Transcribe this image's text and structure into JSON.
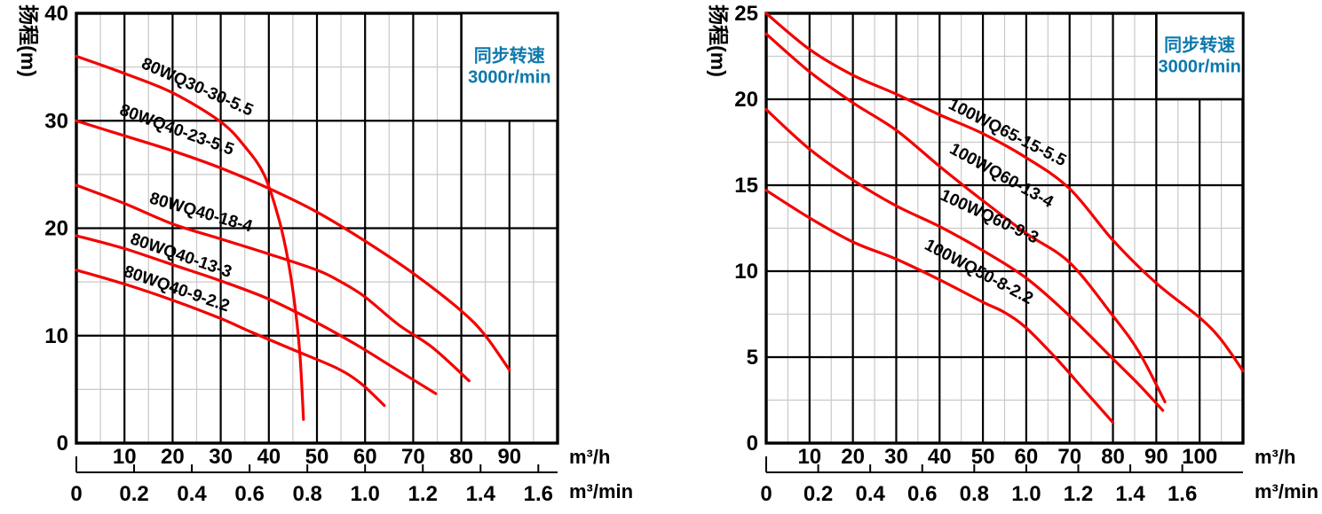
{
  "page": {
    "background": "#ffffff"
  },
  "colors": {
    "curve": "#f40000",
    "grid_major": "#000000",
    "grid_minor": "#c9c9c9",
    "border": "#000000",
    "speed_text": "#0d78ab",
    "text": "#000000"
  },
  "chart_data": [
    {
      "type": "line",
      "name": "80WQ series performance curves",
      "ylabel": "扬程(m)",
      "annotation": {
        "line1": "同步转速",
        "line2": "3000r/min"
      },
      "xlabel_primary": "m³/h",
      "xlabel_secondary": "m³/min",
      "xlim": [
        0,
        100
      ],
      "ylim": [
        0,
        40
      ],
      "x_major": 10,
      "x_minor": 5,
      "y_major": 10,
      "y_minor": 5,
      "x_ticks_primary": [
        10,
        20,
        30,
        40,
        50,
        60,
        70,
        80,
        90
      ],
      "x_ticks_secondary": [
        "0",
        "0.2",
        "0.4",
        "0.6",
        "0.8",
        "1.0",
        "1.2",
        "1.4",
        "1.6"
      ],
      "y_ticks": [
        0,
        10,
        20,
        30,
        40
      ],
      "secondary_to_primary_factor": 60,
      "grid": true,
      "annotation_region": {
        "x0": 80,
        "y0": 30,
        "x1": 100,
        "y1": 40
      },
      "series": [
        {
          "name": "80WQ30-30-5.5",
          "points": [
            [
              0,
              36
            ],
            [
              10,
              34.4
            ],
            [
              20,
              32.6
            ],
            [
              30,
              29.9
            ],
            [
              35,
              27.6
            ],
            [
              39,
              25
            ],
            [
              42,
              21
            ],
            [
              44,
              17
            ],
            [
              45.5,
              12.5
            ],
            [
              46.5,
              8
            ],
            [
              47.2,
              2.2
            ]
          ],
          "label": {
            "x": 24.7,
            "y": 32.7,
            "rot": 24
          }
        },
        {
          "name": "80WQ40-23-5.5",
          "points": [
            [
              0,
              30
            ],
            [
              10,
              28.6
            ],
            [
              20,
              27.2
            ],
            [
              30,
              25.6
            ],
            [
              40,
              23.7
            ],
            [
              50,
              21.5
            ],
            [
              60,
              18.8
            ],
            [
              70,
              15.8
            ],
            [
              80,
              12.3
            ],
            [
              85,
              10
            ],
            [
              90,
              6.8
            ]
          ],
          "label": {
            "x": 20.5,
            "y": 28.7,
            "rot": 20
          }
        },
        {
          "name": "80WQ40-18-4",
          "points": [
            [
              0,
              24
            ],
            [
              10,
              22.3
            ],
            [
              20,
              20.4
            ],
            [
              30,
              19
            ],
            [
              40,
              17.6
            ],
            [
              50,
              16.1
            ],
            [
              55,
              15
            ],
            [
              60,
              13.6
            ],
            [
              67,
              11
            ],
            [
              74,
              8.9
            ],
            [
              81.6,
              5.8
            ]
          ],
          "label": {
            "x": 25.6,
            "y": 21.0,
            "rot": 16
          }
        },
        {
          "name": "80WQ40-13-3",
          "points": [
            [
              0,
              19.3
            ],
            [
              10,
              18.1
            ],
            [
              20,
              16.6
            ],
            [
              30,
              15.1
            ],
            [
              40,
              13.4
            ],
            [
              50,
              11.2
            ],
            [
              58,
              9.2
            ],
            [
              66,
              7
            ],
            [
              74.7,
              4.6
            ]
          ],
          "label": {
            "x": 21.4,
            "y": 17.0,
            "rot": 19
          }
        },
        {
          "name": "80WQ40-9-2.2",
          "points": [
            [
              0,
              16.1
            ],
            [
              10,
              14.8
            ],
            [
              20,
              13.3
            ],
            [
              30,
              11.6
            ],
            [
              36,
              10.4
            ],
            [
              45,
              8.7
            ],
            [
              54,
              7
            ],
            [
              59,
              5.6
            ],
            [
              64,
              3.5
            ]
          ],
          "label": {
            "x": 20.5,
            "y": 13.9,
            "rot": 19
          }
        }
      ]
    },
    {
      "type": "line",
      "name": "100WQ series performance curves",
      "ylabel": "扬程(m)",
      "annotation": {
        "line1": "同步转速",
        "line2": "3000r/min"
      },
      "xlabel_primary": "m³/h",
      "xlabel_secondary": "m³/min",
      "xlim": [
        0,
        110
      ],
      "ylim": [
        0,
        25
      ],
      "x_major": 10,
      "x_minor": 5,
      "y_major": 5,
      "y_minor": 2.5,
      "x_ticks_primary": [
        10,
        20,
        30,
        40,
        50,
        60,
        70,
        80,
        90,
        100
      ],
      "x_ticks_secondary": [
        "0",
        "0.2",
        "0.4",
        "0.6",
        "0.8",
        "1.0",
        "1.2",
        "1.4",
        "1.6"
      ],
      "y_ticks": [
        0,
        5,
        10,
        15,
        20,
        25
      ],
      "secondary_to_primary_factor": 60,
      "grid": true,
      "annotation_region": {
        "x0": 90,
        "y0": 20,
        "x1": 110,
        "y1": 25
      },
      "series": [
        {
          "name": "100WQ65-15-5.5",
          "points": [
            [
              0,
              25
            ],
            [
              10,
              22.9
            ],
            [
              20,
              21.4
            ],
            [
              30,
              20.3
            ],
            [
              40,
              19.1
            ],
            [
              50,
              18
            ],
            [
              60,
              16.6
            ],
            [
              70,
              14.8
            ],
            [
              80,
              11.8
            ],
            [
              90,
              9.3
            ],
            [
              100,
              7.3
            ],
            [
              105,
              6
            ],
            [
              110,
              4.2
            ]
          ],
          "label": {
            "x": 55.1,
            "y": 17.8,
            "rot": 27
          }
        },
        {
          "name": "100WQ60-13-4",
          "points": [
            [
              0,
              23.8
            ],
            [
              10,
              21.6
            ],
            [
              20,
              19.8
            ],
            [
              30,
              18.2
            ],
            [
              40,
              16.1
            ],
            [
              50,
              14.1
            ],
            [
              60,
              12.2
            ],
            [
              70,
              10.5
            ],
            [
              80,
              7.4
            ],
            [
              86,
              5.3
            ],
            [
              92,
              2.4
            ]
          ],
          "label": {
            "x": 53.7,
            "y": 15.3,
            "rot": 29
          }
        },
        {
          "name": "100WQ60-9-3",
          "points": [
            [
              0,
              19.4
            ],
            [
              10,
              17.1
            ],
            [
              20,
              15.3
            ],
            [
              30,
              13.8
            ],
            [
              40,
              12.6
            ],
            [
              50,
              11.2
            ],
            [
              60,
              9.6
            ],
            [
              70,
              7.4
            ],
            [
              80,
              4.9
            ],
            [
              86,
              3.4
            ],
            [
              91.5,
              1.9
            ]
          ],
          "label": {
            "x": 51.0,
            "y": 12.9,
            "rot": 25
          }
        },
        {
          "name": "100WQ50-8-2.2",
          "points": [
            [
              0,
              14.7
            ],
            [
              10,
              13.1
            ],
            [
              20,
              11.7
            ],
            [
              30,
              10.7
            ],
            [
              40,
              9.5
            ],
            [
              50,
              8.2
            ],
            [
              55,
              7.6
            ],
            [
              60,
              6.7
            ],
            [
              67,
              4.9
            ],
            [
              74,
              2.9
            ],
            [
              80,
              1.2
            ]
          ],
          "label": {
            "x": 48.5,
            "y": 9.7,
            "rot": 28
          }
        }
      ]
    }
  ]
}
